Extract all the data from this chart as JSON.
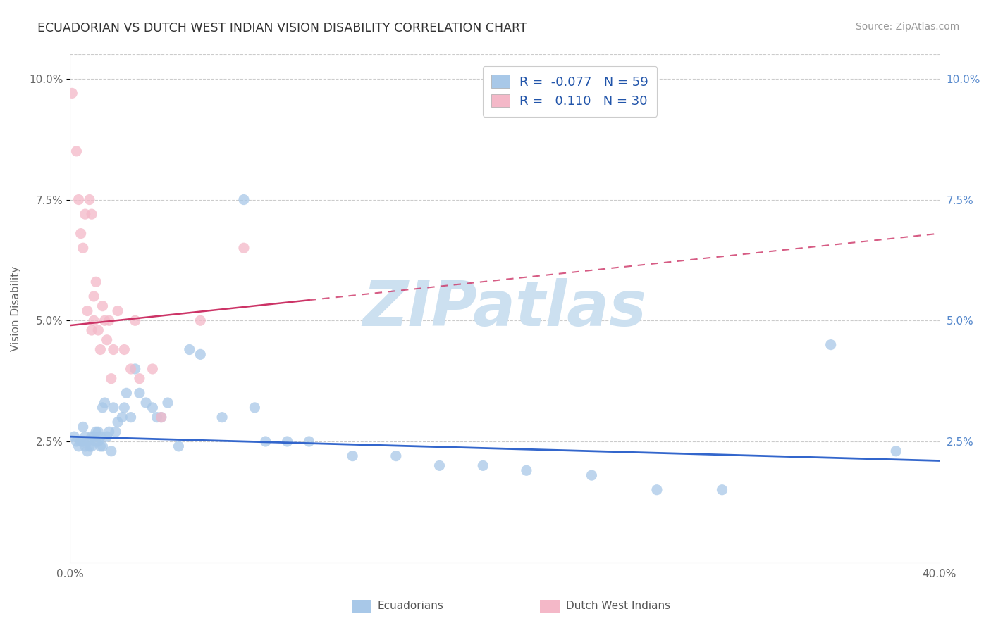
{
  "title": "ECUADORIAN VS DUTCH WEST INDIAN VISION DISABILITY CORRELATION CHART",
  "source": "Source: ZipAtlas.com",
  "ylabel": "Vision Disability",
  "xmin": 0.0,
  "xmax": 0.4,
  "ymin": 0.0,
  "ymax": 0.105,
  "yticks": [
    0.025,
    0.05,
    0.075,
    0.1
  ],
  "ytick_labels": [
    "2.5%",
    "5.0%",
    "7.5%",
    "10.0%"
  ],
  "xticks": [
    0.0,
    0.1,
    0.2,
    0.3,
    0.4
  ],
  "xtick_labels": [
    "0.0%",
    "",
    "",
    "",
    "40.0%"
  ],
  "blue_R": -0.077,
  "blue_N": 59,
  "pink_R": 0.11,
  "pink_N": 30,
  "blue_color": "#a8c8e8",
  "pink_color": "#f4b8c8",
  "blue_line_color": "#3366cc",
  "pink_line_color": "#cc3366",
  "watermark_color": "#cce0f0",
  "legend_label_blue": "Ecuadorians",
  "legend_label_pink": "Dutch West Indians",
  "blue_line_x0": 0.0,
  "blue_line_y0": 0.026,
  "blue_line_x1": 0.4,
  "blue_line_y1": 0.021,
  "pink_line_x0": 0.0,
  "pink_line_y0": 0.049,
  "pink_line_x1": 0.4,
  "pink_line_y1": 0.068,
  "blue_scatter_x": [
    0.002,
    0.003,
    0.004,
    0.005,
    0.006,
    0.006,
    0.007,
    0.007,
    0.008,
    0.008,
    0.009,
    0.01,
    0.01,
    0.011,
    0.012,
    0.012,
    0.013,
    0.013,
    0.014,
    0.014,
    0.015,
    0.015,
    0.016,
    0.017,
    0.018,
    0.019,
    0.02,
    0.021,
    0.022,
    0.024,
    0.025,
    0.026,
    0.028,
    0.03,
    0.032,
    0.035,
    0.038,
    0.04,
    0.042,
    0.045,
    0.05,
    0.055,
    0.06,
    0.07,
    0.08,
    0.085,
    0.09,
    0.1,
    0.11,
    0.13,
    0.15,
    0.17,
    0.19,
    0.21,
    0.24,
    0.27,
    0.3,
    0.35,
    0.38
  ],
  "blue_scatter_y": [
    0.026,
    0.025,
    0.024,
    0.025,
    0.025,
    0.028,
    0.024,
    0.026,
    0.023,
    0.025,
    0.024,
    0.026,
    0.024,
    0.026,
    0.025,
    0.027,
    0.025,
    0.027,
    0.024,
    0.026,
    0.024,
    0.032,
    0.033,
    0.026,
    0.027,
    0.023,
    0.032,
    0.027,
    0.029,
    0.03,
    0.032,
    0.035,
    0.03,
    0.04,
    0.035,
    0.033,
    0.032,
    0.03,
    0.03,
    0.033,
    0.024,
    0.044,
    0.043,
    0.03,
    0.075,
    0.032,
    0.025,
    0.025,
    0.025,
    0.022,
    0.022,
    0.02,
    0.02,
    0.019,
    0.018,
    0.015,
    0.015,
    0.045,
    0.023
  ],
  "pink_scatter_x": [
    0.001,
    0.003,
    0.004,
    0.005,
    0.006,
    0.007,
    0.008,
    0.009,
    0.01,
    0.01,
    0.011,
    0.011,
    0.012,
    0.013,
    0.014,
    0.015,
    0.016,
    0.017,
    0.018,
    0.019,
    0.02,
    0.022,
    0.025,
    0.028,
    0.03,
    0.032,
    0.038,
    0.042,
    0.06,
    0.08
  ],
  "pink_scatter_y": [
    0.097,
    0.085,
    0.075,
    0.068,
    0.065,
    0.072,
    0.052,
    0.075,
    0.048,
    0.072,
    0.05,
    0.055,
    0.058,
    0.048,
    0.044,
    0.053,
    0.05,
    0.046,
    0.05,
    0.038,
    0.044,
    0.052,
    0.044,
    0.04,
    0.05,
    0.038,
    0.04,
    0.03,
    0.05,
    0.065
  ]
}
